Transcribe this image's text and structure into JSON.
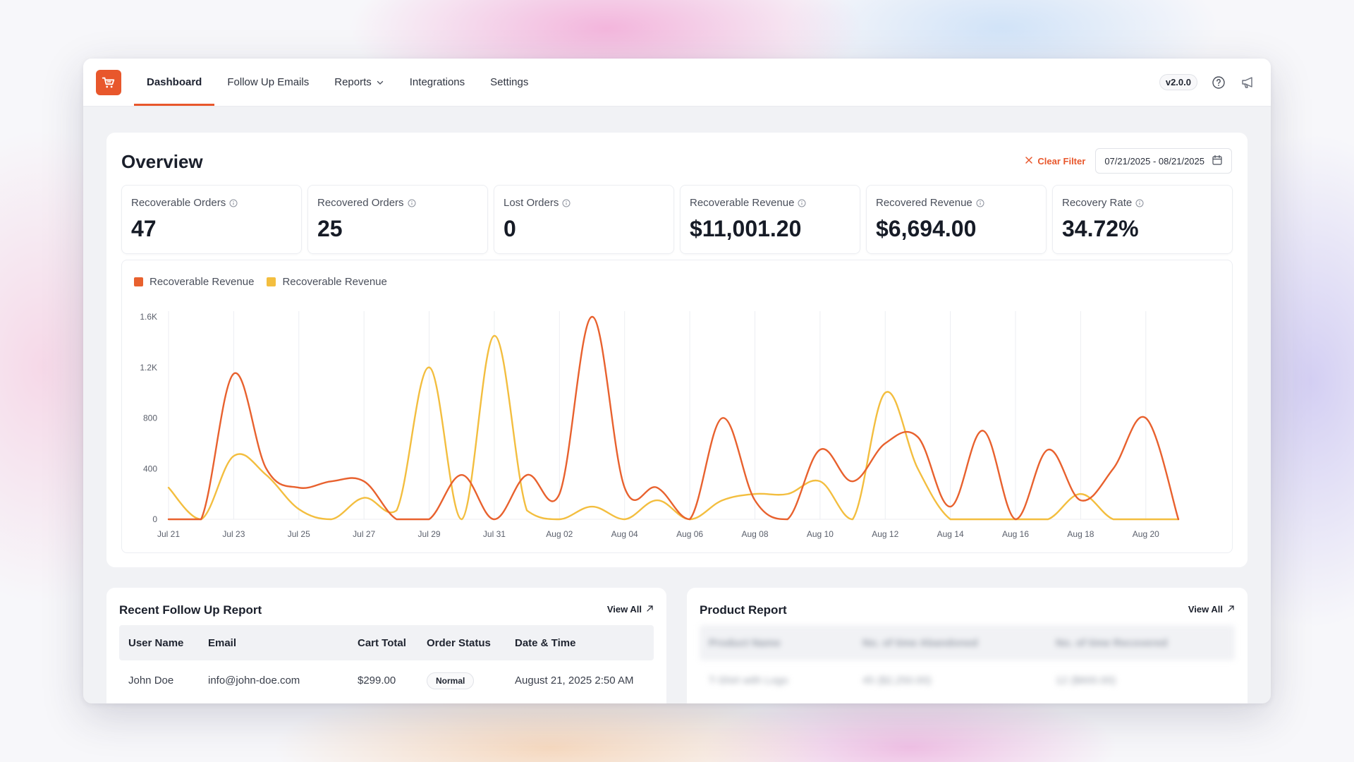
{
  "topbar": {
    "logo_icon": "shopping-cart-icon",
    "nav": [
      {
        "label": "Dashboard",
        "active": true
      },
      {
        "label": "Follow Up Emails",
        "active": false
      },
      {
        "label": "Reports",
        "active": false
      },
      {
        "label": "Integrations",
        "active": false
      },
      {
        "label": "Settings",
        "active": false
      }
    ],
    "version": "v2.0.0"
  },
  "overview": {
    "title": "Overview",
    "clear_filter": "Clear Filter",
    "date_range": "07/21/2025 - 08/21/2025",
    "stats": [
      {
        "label": "Recoverable Orders",
        "value": "47"
      },
      {
        "label": "Recovered Orders",
        "value": "25"
      },
      {
        "label": "Lost Orders",
        "value": "0"
      },
      {
        "label": "Recoverable Revenue",
        "value": "$11,001.20"
      },
      {
        "label": "Recovered Revenue",
        "value": "$6,694.00"
      },
      {
        "label": "Recovery Rate",
        "value": "34.72%"
      }
    ]
  },
  "chart_data": {
    "type": "line",
    "x": [
      "Jul 21",
      "Jul 22",
      "Jul 23",
      "Jul 24",
      "Jul 25",
      "Jul 26",
      "Jul 27",
      "Jul 28",
      "Jul 29",
      "Jul 30",
      "Jul 31",
      "Aug 01",
      "Aug 02",
      "Aug 03",
      "Aug 04",
      "Aug 05",
      "Aug 06",
      "Aug 07",
      "Aug 08",
      "Aug 09",
      "Aug 10",
      "Aug 11",
      "Aug 12",
      "Aug 13",
      "Aug 14",
      "Aug 15",
      "Aug 16",
      "Aug 17",
      "Aug 18",
      "Aug 19",
      "Aug 20",
      "Aug 21"
    ],
    "xticks": [
      "Jul 21",
      "Jul 23",
      "Jul 25",
      "Jul 27",
      "Jul 29",
      "Jul 31",
      "Aug 02",
      "Aug 04",
      "Aug 06",
      "Aug 08",
      "Aug 10",
      "Aug 12",
      "Aug 14",
      "Aug 16",
      "Aug 18",
      "Aug 20"
    ],
    "yticks": [
      "0",
      "400",
      "800",
      "1.2K",
      "1.6K"
    ],
    "ylim": [
      0,
      1600
    ],
    "series": [
      {
        "name": "Recoverable Revenue",
        "color": "#e8612e",
        "values": [
          0,
          0,
          1150,
          400,
          250,
          300,
          300,
          0,
          0,
          350,
          0,
          350,
          200,
          1600,
          250,
          250,
          0,
          800,
          150,
          0,
          550,
          300,
          600,
          650,
          100,
          700,
          0,
          550,
          150,
          400,
          800,
          0
        ]
      },
      {
        "name": "Recoverable Revenue",
        "color": "#f3be3f",
        "values": [
          250,
          0,
          500,
          350,
          80,
          0,
          170,
          70,
          1200,
          0,
          1450,
          70,
          0,
          100,
          0,
          150,
          0,
          150,
          200,
          200,
          300,
          0,
          1000,
          400,
          0,
          0,
          0,
          0,
          200,
          0,
          0,
          0
        ]
      }
    ],
    "grid": "vertical",
    "legend": "top-left"
  },
  "recent": {
    "title": "Recent Follow Up Report",
    "view_all": "View All",
    "headers": [
      "User Name",
      "Email",
      "Cart Total",
      "Order Status",
      "Date & Time"
    ],
    "rows": [
      {
        "user": "John Doe",
        "email": "info@john-doe.com",
        "total": "$299.00",
        "status": "Normal",
        "datetime": "August 21, 2025 2:50 AM"
      }
    ]
  },
  "product": {
    "title": "Product Report",
    "view_all": "View All",
    "headers": [
      "Product Name",
      "No. of time Abandoned",
      "No. of time Recovered"
    ],
    "rows": [
      {
        "name": "T-Shirt with Logo",
        "abandoned": "45 ($2,250.00)",
        "recovered": "12 ($600.00)"
      }
    ]
  }
}
